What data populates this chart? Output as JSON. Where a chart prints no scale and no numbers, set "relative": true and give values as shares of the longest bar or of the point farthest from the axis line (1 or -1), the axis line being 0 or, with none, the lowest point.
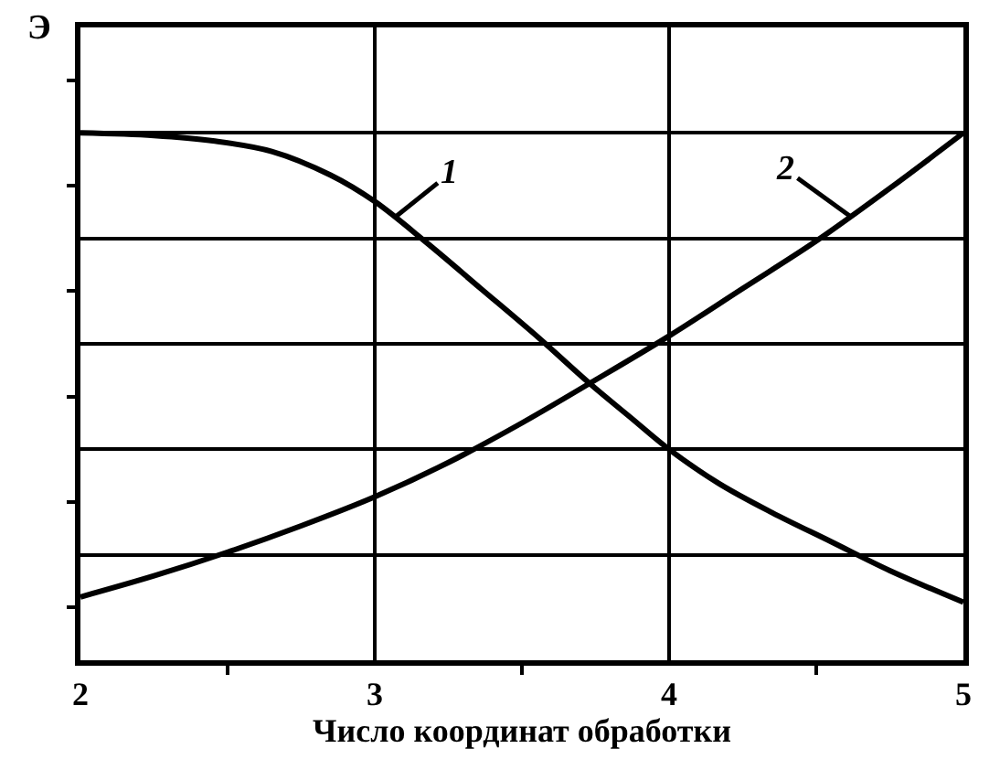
{
  "chart_data": {
    "type": "line",
    "ylabel": "Э",
    "xlabel": "Число координат обработки",
    "xlim": [
      2,
      5
    ],
    "xticks": [
      2,
      {
        "value": 2.5,
        "label": null
      },
      3,
      {
        "value": 3.5,
        "label": null
      },
      4,
      {
        "value": 4.5,
        "label": null
      },
      5
    ],
    "relative": true,
    "grid": true,
    "line_style": "solid",
    "series": [
      {
        "name": "1",
        "color": "#000000",
        "x": [
          2.0,
          2.25,
          2.45,
          2.65,
          2.85,
          3.0,
          3.18,
          3.36,
          3.56,
          3.73,
          3.87,
          4.0,
          4.17,
          4.35,
          4.55,
          4.75,
          5.0
        ],
        "values": [
          1.0,
          0.995,
          0.985,
          0.965,
          0.92,
          0.87,
          0.79,
          0.705,
          0.61,
          0.525,
          0.46,
          0.4,
          0.335,
          0.28,
          0.225,
          0.17,
          0.11
        ]
      },
      {
        "name": "2",
        "color": "#000000",
        "x": [
          2.0,
          2.25,
          2.5,
          2.75,
          3.0,
          3.25,
          3.5,
          3.73,
          4.0,
          4.25,
          4.5,
          4.75,
          5.0
        ],
        "values": [
          0.12,
          0.16,
          0.205,
          0.255,
          0.31,
          0.375,
          0.45,
          0.525,
          0.615,
          0.705,
          0.795,
          0.895,
          1.0
        ]
      }
    ]
  }
}
